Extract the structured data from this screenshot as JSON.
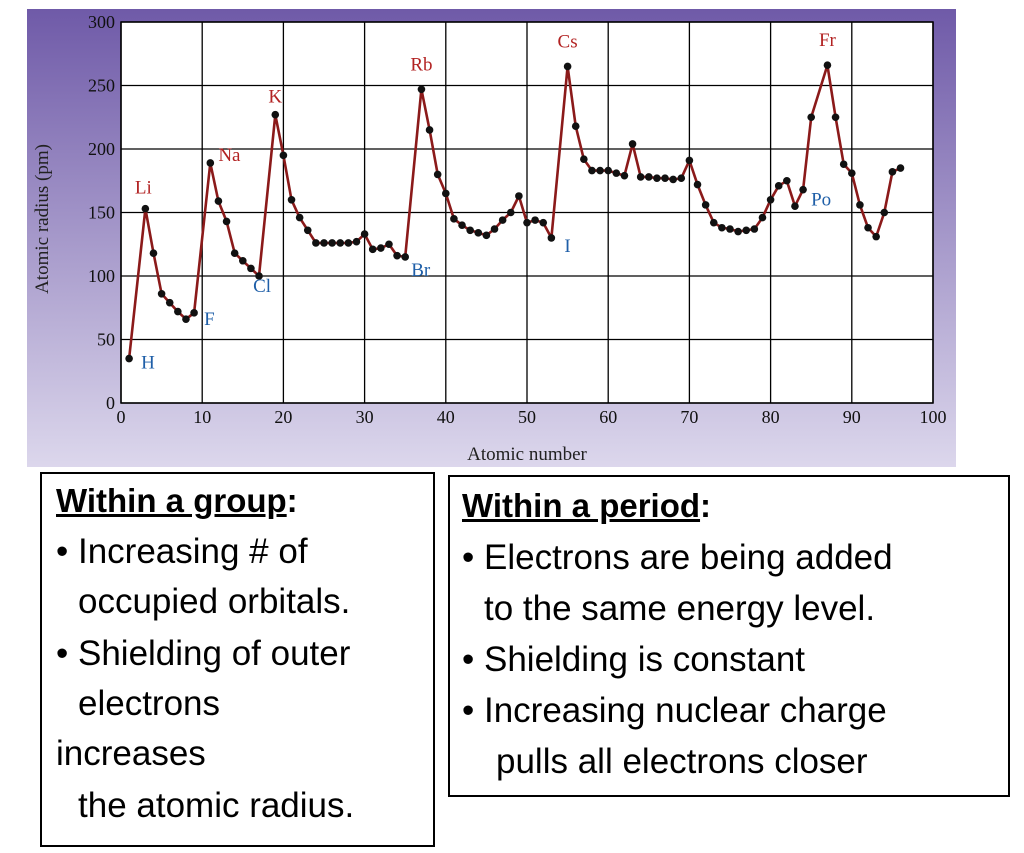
{
  "chart_data": {
    "type": "line",
    "title": "",
    "xlabel": "Atomic number",
    "ylabel": "Atomic radius (pm)",
    "xlim": [
      0,
      100
    ],
    "ylim": [
      0,
      300
    ],
    "xticks": [
      "0",
      "10",
      "20",
      "30",
      "40",
      "50",
      "60",
      "70",
      "80",
      "90",
      "100"
    ],
    "yticks": [
      "0",
      "50",
      "100",
      "150",
      "200",
      "250",
      "300"
    ],
    "grid": true,
    "colors": {
      "line": "#8b1a1a",
      "point": "#111111",
      "plot_bg": "#ffffff",
      "frame_bg_top": "#6f5aa8",
      "frame_bg_bottom": "#dcd7ec",
      "alkali_label": "#b22222",
      "other_label": "#1f5fa8"
    },
    "series": [
      {
        "x": [
          1,
          3,
          4,
          5,
          6,
          7,
          8,
          9,
          11,
          12,
          13,
          14,
          15,
          16,
          17,
          19,
          20,
          21,
          22,
          23,
          24,
          25,
          26,
          27,
          28,
          29,
          30,
          31,
          32,
          33,
          34,
          35,
          37,
          38,
          39,
          40,
          41,
          42,
          43,
          44,
          45,
          46,
          47,
          48,
          49,
          50,
          51,
          52,
          53,
          55,
          56,
          57,
          58,
          59,
          60,
          61,
          62,
          63,
          64,
          65,
          66,
          67,
          68,
          69,
          70,
          71,
          72,
          73,
          74,
          75,
          76,
          77,
          78,
          79,
          80,
          81,
          82,
          83,
          84,
          85,
          87,
          88,
          89,
          90,
          91,
          92,
          93,
          94,
          95,
          96
        ],
        "y": [
          35,
          153,
          118,
          86,
          79,
          72,
          66,
          71,
          189,
          159,
          143,
          118,
          112,
          106,
          100,
          227,
          195,
          160,
          146,
          136,
          126,
          126,
          126,
          126,
          126,
          127,
          133,
          121,
          122,
          125,
          116,
          115,
          247,
          215,
          180,
          165,
          145,
          140,
          136,
          134,
          132,
          137,
          144,
          150,
          163,
          142,
          144,
          142,
          130,
          265,
          218,
          192,
          183,
          183,
          183,
          181,
          179,
          204,
          178,
          178,
          177,
          177,
          176,
          177,
          191,
          172,
          156,
          142,
          138,
          137,
          135,
          136,
          137,
          146,
          160,
          171,
          175,
          155,
          168,
          225,
          266,
          225,
          188,
          181,
          156,
          138,
          131,
          150,
          182,
          185
        ]
      }
    ],
    "annotations": [
      {
        "text": "H",
        "x": 1,
        "y": 35,
        "group": "other"
      },
      {
        "text": "Li",
        "x": 3,
        "y": 153,
        "group": "alkali"
      },
      {
        "text": "F",
        "x": 9,
        "y": 71,
        "group": "other"
      },
      {
        "text": "Na",
        "x": 11,
        "y": 189,
        "group": "alkali"
      },
      {
        "text": "Cl",
        "x": 17,
        "y": 100,
        "group": "other"
      },
      {
        "text": "K",
        "x": 19,
        "y": 227,
        "group": "alkali"
      },
      {
        "text": "Rb",
        "x": 37,
        "y": 247,
        "group": "alkali"
      },
      {
        "text": "Br",
        "x": 35,
        "y": 115,
        "group": "other"
      },
      {
        "text": "Cs",
        "x": 55,
        "y": 265,
        "group": "alkali"
      },
      {
        "text": "I",
        "x": 53,
        "y": 130,
        "group": "other"
      },
      {
        "text": "Fr",
        "x": 87,
        "y": 266,
        "group": "alkali"
      },
      {
        "text": "Po",
        "x": 84,
        "y": 168,
        "group": "other"
      }
    ]
  },
  "group_box": {
    "heading": "Within a group",
    "heading_suffix": ":",
    "lines": [
      "• Increasing # of",
      "occupied orbitals.",
      "• Shielding of outer",
      "electrons",
      "increases",
      "the atomic radius."
    ]
  },
  "period_box": {
    "heading": "Within a period",
    "heading_suffix": ":",
    "lines": [
      "• Electrons are being added",
      "to the same energy level.",
      "• Shielding is constant",
      "• Increasing nuclear charge",
      "pulls all electrons closer"
    ]
  }
}
